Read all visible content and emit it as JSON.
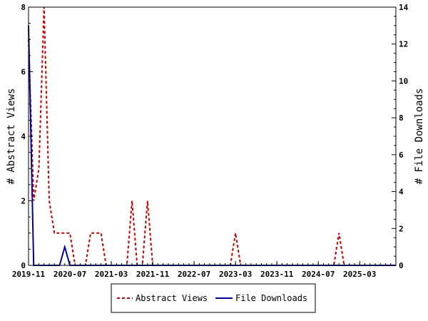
{
  "chart_data": {
    "type": "line",
    "title": "",
    "xlabel": "",
    "ylabel_left": "# Abstract Views",
    "ylabel_right": "# File Downloads",
    "x_tick_labels": [
      "2019-11",
      "2020-07",
      "2021-03",
      "2021-11",
      "2022-07",
      "2023-03",
      "2023-11",
      "2024-07",
      "2025-03"
    ],
    "x_range": [
      "2019-11",
      "2025-10"
    ],
    "y_left_range": [
      0,
      8
    ],
    "y_left_ticks": [
      "0",
      "2",
      "4",
      "6",
      "8"
    ],
    "y_right_range": [
      0,
      14
    ],
    "y_right_ticks": [
      "0",
      "2",
      "4",
      "6",
      "8",
      "10",
      "12",
      "14"
    ],
    "legend_position": "bottom-center",
    "series": [
      {
        "name": "Abstract Views",
        "axis": "left",
        "color": "#cc0000",
        "style": "dashed",
        "points": [
          [
            "2019-11",
            7
          ],
          [
            "2019-12",
            2
          ],
          [
            "2020-01",
            3
          ],
          [
            "2020-02",
            8
          ],
          [
            "2020-03",
            2
          ],
          [
            "2020-04",
            1
          ],
          [
            "2020-05",
            1
          ],
          [
            "2020-06",
            1
          ],
          [
            "2020-07",
            1
          ],
          [
            "2020-08",
            0
          ],
          [
            "2020-09",
            0
          ],
          [
            "2020-10",
            0
          ],
          [
            "2020-11",
            1
          ],
          [
            "2020-12",
            1
          ],
          [
            "2021-01",
            1
          ],
          [
            "2021-02",
            0
          ],
          [
            "2021-03",
            0
          ],
          [
            "2021-04",
            0
          ],
          [
            "2021-05",
            0
          ],
          [
            "2021-06",
            0
          ],
          [
            "2021-07",
            2
          ],
          [
            "2021-08",
            0
          ],
          [
            "2021-09",
            0
          ],
          [
            "2021-10",
            2
          ],
          [
            "2021-11",
            0
          ],
          [
            "2021-12",
            0
          ],
          [
            "2022-01",
            0
          ],
          [
            "2022-02",
            0
          ],
          [
            "2022-03",
            0
          ],
          [
            "2022-04",
            0
          ],
          [
            "2022-05",
            0
          ],
          [
            "2022-06",
            0
          ],
          [
            "2022-07",
            0
          ],
          [
            "2022-08",
            0
          ],
          [
            "2022-09",
            0
          ],
          [
            "2022-10",
            0
          ],
          [
            "2022-11",
            0
          ],
          [
            "2022-12",
            0
          ],
          [
            "2023-01",
            0
          ],
          [
            "2023-02",
            0
          ],
          [
            "2023-03",
            1
          ],
          [
            "2023-04",
            0
          ],
          [
            "2023-05",
            0
          ],
          [
            "2023-06",
            0
          ],
          [
            "2023-07",
            0
          ],
          [
            "2023-08",
            0
          ],
          [
            "2023-09",
            0
          ],
          [
            "2023-10",
            0
          ],
          [
            "2023-11",
            0
          ],
          [
            "2023-12",
            0
          ],
          [
            "2024-01",
            0
          ],
          [
            "2024-02",
            0
          ],
          [
            "2024-03",
            0
          ],
          [
            "2024-04",
            0
          ],
          [
            "2024-05",
            0
          ],
          [
            "2024-06",
            0
          ],
          [
            "2024-07",
            0
          ],
          [
            "2024-08",
            0
          ],
          [
            "2024-09",
            0
          ],
          [
            "2024-10",
            0
          ],
          [
            "2024-11",
            1
          ],
          [
            "2024-12",
            0
          ],
          [
            "2025-01",
            0
          ],
          [
            "2025-02",
            0
          ],
          [
            "2025-03",
            0
          ],
          [
            "2025-04",
            0
          ],
          [
            "2025-05",
            0
          ],
          [
            "2025-06",
            0
          ],
          [
            "2025-07",
            0
          ],
          [
            "2025-08",
            0
          ],
          [
            "2025-09",
            0
          ],
          [
            "2025-10",
            0
          ]
        ]
      },
      {
        "name": "File Downloads",
        "axis": "right",
        "color": "#000099",
        "style": "solid",
        "points": [
          [
            "2019-11",
            13
          ],
          [
            "2019-12",
            0
          ],
          [
            "2020-01",
            0
          ],
          [
            "2020-02",
            0
          ],
          [
            "2020-03",
            0
          ],
          [
            "2020-04",
            0
          ],
          [
            "2020-05",
            0
          ],
          [
            "2020-06",
            1
          ],
          [
            "2020-07",
            0
          ],
          [
            "2020-08",
            0
          ],
          [
            "2020-09",
            0
          ],
          [
            "2020-10",
            0
          ],
          [
            "2020-11",
            0
          ],
          [
            "2020-12",
            0
          ],
          [
            "2021-01",
            0
          ],
          [
            "2021-02",
            0
          ],
          [
            "2021-03",
            0
          ],
          [
            "2021-04",
            0
          ],
          [
            "2021-05",
            0
          ],
          [
            "2021-06",
            0
          ],
          [
            "2021-07",
            0
          ],
          [
            "2021-08",
            0
          ],
          [
            "2021-09",
            0
          ],
          [
            "2021-10",
            0
          ],
          [
            "2021-11",
            0
          ],
          [
            "2021-12",
            0
          ],
          [
            "2022-01",
            0
          ],
          [
            "2022-02",
            0
          ],
          [
            "2022-03",
            0
          ],
          [
            "2022-04",
            0
          ],
          [
            "2022-05",
            0
          ],
          [
            "2022-06",
            0
          ],
          [
            "2022-07",
            0
          ],
          [
            "2022-08",
            0
          ],
          [
            "2022-09",
            0
          ],
          [
            "2022-10",
            0
          ],
          [
            "2022-11",
            0
          ],
          [
            "2022-12",
            0
          ],
          [
            "2023-01",
            0
          ],
          [
            "2023-02",
            0
          ],
          [
            "2023-03",
            0
          ],
          [
            "2023-04",
            0
          ],
          [
            "2023-05",
            0
          ],
          [
            "2023-06",
            0
          ],
          [
            "2023-07",
            0
          ],
          [
            "2023-08",
            0
          ],
          [
            "2023-09",
            0
          ],
          [
            "2023-10",
            0
          ],
          [
            "2023-11",
            0
          ],
          [
            "2023-12",
            0
          ],
          [
            "2024-01",
            0
          ],
          [
            "2024-02",
            0
          ],
          [
            "2024-03",
            0
          ],
          [
            "2024-04",
            0
          ],
          [
            "2024-05",
            0
          ],
          [
            "2024-06",
            0
          ],
          [
            "2024-07",
            0
          ],
          [
            "2024-08",
            0
          ],
          [
            "2024-09",
            0
          ],
          [
            "2024-10",
            0
          ],
          [
            "2024-11",
            0
          ],
          [
            "2024-12",
            0
          ],
          [
            "2025-01",
            0
          ],
          [
            "2025-02",
            0
          ],
          [
            "2025-03",
            0
          ],
          [
            "2025-04",
            0
          ],
          [
            "2025-05",
            0
          ],
          [
            "2025-06",
            0
          ],
          [
            "2025-07",
            0
          ],
          [
            "2025-08",
            0
          ],
          [
            "2025-09",
            0
          ],
          [
            "2025-10",
            0
          ]
        ]
      }
    ]
  }
}
